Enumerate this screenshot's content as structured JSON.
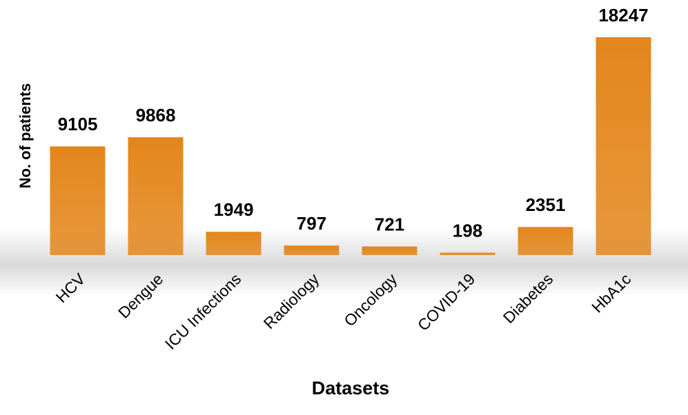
{
  "chart_data": {
    "type": "bar",
    "x_label": "Datasets",
    "y_label": "No. of patients",
    "categories": [
      "HCV",
      "Dengue",
      "ICU Infections",
      "Radiology",
      "Oncology",
      "COVID-19",
      "Diabetes",
      "HbA1c"
    ],
    "values": [
      9105,
      9868,
      1949,
      797,
      721,
      198,
      2351,
      18247
    ],
    "color": "#e3861b"
  }
}
